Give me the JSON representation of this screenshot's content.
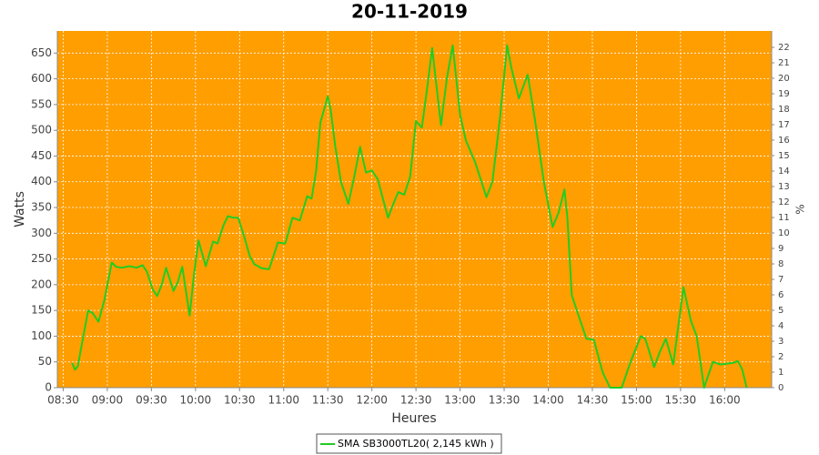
{
  "chart_data": {
    "type": "line",
    "title": "20-11-2019",
    "x_label": "Heures",
    "y_label": "Watts",
    "y2_label": "%",
    "background": "#ff9e00",
    "grid": true,
    "legend": "bottom",
    "x": [
      "08:36",
      "08:38",
      "08:40",
      "08:43",
      "08:47",
      "08:50",
      "08:54",
      "08:58",
      "09:03",
      "09:06",
      "09:10",
      "09:15",
      "09:20",
      "09:24",
      "09:27",
      "09:31",
      "09:34",
      "09:37",
      "09:40",
      "09:45",
      "09:48",
      "09:51",
      "09:56",
      "09:59",
      "10:02",
      "10:07",
      "10:12",
      "10:15",
      "10:19",
      "10:22",
      "10:26",
      "10:29",
      "10:33",
      "10:37",
      "10:40",
      "10:45",
      "10:50",
      "10:53",
      "10:56",
      "11:01",
      "11:06",
      "11:11",
      "11:16",
      "11:19",
      "11:22",
      "11:25",
      "11:30",
      "11:32",
      "11:35",
      "11:39",
      "11:44",
      "11:48",
      "11:52",
      "11:56",
      "12:00",
      "12:04",
      "12:11",
      "12:15",
      "12:18",
      "12:22",
      "12:26",
      "12:30",
      "12:34",
      "12:38",
      "12:41",
      "12:44",
      "12:47",
      "12:51",
      "12:55",
      "13:00",
      "13:04",
      "13:10",
      "13:14",
      "13:18",
      "13:22",
      "13:27",
      "13:32",
      "13:35",
      "13:40",
      "13:46",
      "13:51",
      "13:57",
      "14:03",
      "14:07",
      "14:11",
      "14:13",
      "14:16",
      "14:20",
      "14:26",
      "14:31",
      "14:37",
      "14:42",
      "14:50",
      "14:56",
      "15:03",
      "15:06",
      "15:12",
      "15:16",
      "15:20",
      "15:25",
      "15:32",
      "15:37",
      "15:41",
      "15:46",
      "15:52",
      "15:57",
      "16:06",
      "16:09",
      "16:12",
      "16:15"
    ],
    "series": [
      {
        "name": "SMA SB3000TL20( 2,145 kWh )",
        "color": "#22cc22",
        "values": [
          48,
          35,
          42,
          90,
          150,
          145,
          128,
          170,
          243,
          235,
          233,
          236,
          233,
          238,
          225,
          190,
          178,
          200,
          233,
          188,
          205,
          235,
          140,
          220,
          286,
          236,
          284,
          280,
          315,
          333,
          330,
          330,
          295,
          255,
          240,
          232,
          230,
          255,
          282,
          280,
          330,
          325,
          372,
          367,
          420,
          515,
          566,
          540,
          470,
          400,
          357,
          410,
          468,
          418,
          422,
          405,
          330,
          360,
          380,
          375,
          410,
          518,
          505,
          590,
          660,
          585,
          510,
          600,
          665,
          530,
          480,
          440,
          405,
          370,
          400,
          520,
          665,
          620,
          562,
          608,
          520,
          400,
          312,
          340,
          385,
          330,
          180,
          145,
          95,
          93,
          30,
          0,
          0,
          50,
          100,
          95,
          40,
          70,
          95,
          45,
          195,
          130,
          100,
          0,
          50,
          45,
          48,
          52,
          35,
          0
        ]
      }
    ],
    "xlim": [
      "08:26",
      "16:32"
    ],
    "xticks": [
      "08:30",
      "09:00",
      "09:30",
      "10:00",
      "10:30",
      "11:00",
      "11:30",
      "12:00",
      "12:30",
      "13:00",
      "13:30",
      "14:00",
      "14:30",
      "15:00",
      "15:30",
      "16:00"
    ],
    "ylim": [
      0,
      693
    ],
    "yticks": [
      0,
      50,
      100,
      150,
      200,
      250,
      300,
      350,
      400,
      450,
      500,
      550,
      600,
      650
    ],
    "y2lim": [
      0,
      23.06
    ],
    "y2ticks": [
      0,
      1,
      2,
      3,
      4,
      5,
      6,
      7,
      8,
      9,
      10,
      11,
      12,
      13,
      14,
      15,
      16,
      17,
      18,
      19,
      20,
      21,
      22
    ]
  }
}
